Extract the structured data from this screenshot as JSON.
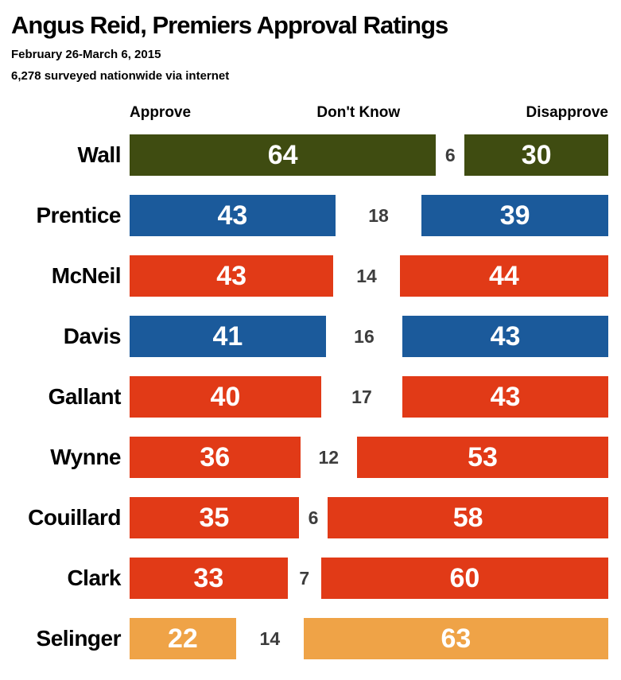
{
  "header": {
    "title": "Angus Reid, Premiers Approval Ratings",
    "subtitle": "February 26-March 6, 2015",
    "note": "6,278 surveyed nationwide via internet"
  },
  "columns": {
    "approve": "Approve",
    "dont_know": "Don't Know",
    "disapprove": "Disapprove"
  },
  "chart_data": {
    "type": "bar",
    "orientation": "horizontal-stacked-100",
    "title": "Angus Reid, Premiers Approval Ratings",
    "subtitle": "February 26-March 6, 2015",
    "annotation": "6,278 surveyed nationwide via internet",
    "categories": [
      "Wall",
      "Prentice",
      "McNeil",
      "Davis",
      "Gallant",
      "Wynne",
      "Couillard",
      "Clark",
      "Selinger"
    ],
    "series": [
      {
        "name": "Approve",
        "values": [
          64,
          43,
          43,
          41,
          40,
          36,
          35,
          33,
          22
        ]
      },
      {
        "name": "Don't Know",
        "values": [
          6,
          18,
          14,
          16,
          17,
          12,
          6,
          7,
          14
        ]
      },
      {
        "name": "Disapprove",
        "values": [
          30,
          39,
          44,
          43,
          43,
          53,
          58,
          60,
          63
        ]
      }
    ],
    "row_colors": [
      "#3f4c11",
      "#1b5a9b",
      "#e13a17",
      "#1b5a9b",
      "#e13a17",
      "#e13a17",
      "#e13a17",
      "#e13a17",
      "#efa347"
    ],
    "bar_value_color": "#ffffff",
    "dont_know_text_color": "#3d3d3d",
    "xlim": [
      0,
      100
    ],
    "legend_position": "top",
    "grid": false
  }
}
